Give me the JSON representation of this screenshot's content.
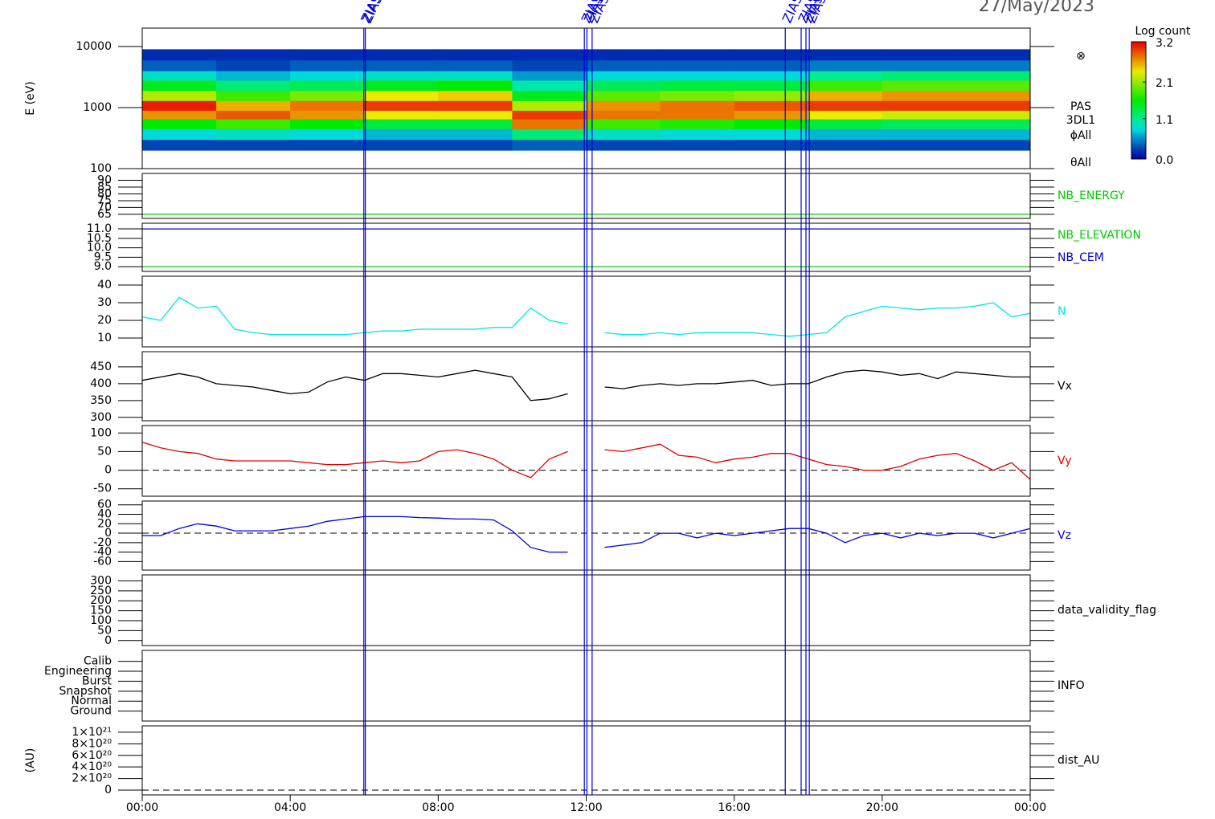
{
  "date": "27/May/2023",
  "xlim": [
    0,
    24
  ],
  "xticks": [
    {
      "value": 0,
      "label": "00:00"
    },
    {
      "value": 4,
      "label": "04:00"
    },
    {
      "value": 8,
      "label": "08:00"
    },
    {
      "value": 12,
      "label": "12:00"
    },
    {
      "value": 16,
      "label": "16:00"
    },
    {
      "value": 20,
      "label": "20:00"
    },
    {
      "value": 24,
      "label": "00:00"
    }
  ],
  "events": {
    "label": "ZIAS",
    "color": "#0000cc",
    "x": [
      5.99,
      6.03,
      11.95,
      12.02,
      12.16,
      17.38,
      17.81,
      17.94,
      18.03
    ]
  },
  "chart_data": [
    {
      "type": "heatmap",
      "ylabel": "E (eV)",
      "ylog": true,
      "ylim": [
        100,
        20000
      ],
      "yticks": [
        100,
        1000,
        10000
      ],
      "x_edges": [
        0,
        2,
        4,
        6,
        8,
        10,
        12,
        14,
        16,
        18,
        20,
        22,
        24
      ],
      "y_edges": [
        200,
        300,
        450,
        650,
        900,
        1300,
        1900,
        2800,
        4000,
        6000,
        9000
      ],
      "z": [
        [
          0.3,
          0.8,
          1.6,
          2.7,
          3.1,
          2.2,
          1.5,
          0.9,
          0.4,
          0.2
        ],
        [
          0.3,
          0.9,
          1.8,
          2.9,
          2.6,
          1.8,
          1.2,
          0.7,
          0.3,
          0.2
        ],
        [
          0.3,
          0.8,
          1.6,
          2.7,
          2.8,
          2.0,
          1.3,
          0.8,
          0.4,
          0.2
        ],
        [
          0.3,
          0.7,
          1.4,
          2.4,
          3.0,
          2.4,
          1.5,
          0.9,
          0.4,
          0.2
        ],
        [
          0.3,
          0.7,
          1.4,
          2.4,
          3.0,
          2.5,
          1.6,
          0.9,
          0.4,
          0.2
        ],
        [
          0.4,
          1.2,
          2.8,
          3.0,
          2.2,
          1.5,
          1.0,
          0.6,
          0.3,
          0.2
        ],
        [
          0.3,
          0.9,
          1.8,
          2.8,
          2.7,
          1.9,
          1.3,
          0.8,
          0.4,
          0.2
        ],
        [
          0.3,
          0.8,
          1.7,
          2.8,
          2.8,
          2.0,
          1.4,
          0.8,
          0.4,
          0.2
        ],
        [
          0.3,
          0.8,
          1.6,
          2.7,
          2.9,
          2.1,
          1.4,
          0.8,
          0.4,
          0.2
        ],
        [
          0.3,
          0.7,
          1.4,
          2.4,
          3.0,
          2.6,
          1.8,
          1.1,
          0.5,
          0.2
        ],
        [
          0.3,
          0.7,
          1.3,
          2.3,
          3.0,
          2.7,
          1.9,
          1.2,
          0.5,
          0.2
        ],
        [
          0.3,
          0.7,
          1.3,
          2.3,
          3.0,
          2.7,
          1.9,
          1.2,
          0.5,
          0.2
        ]
      ],
      "zlim": [
        0,
        3.2
      ],
      "colorbar_title": "Log count",
      "colorbar_ticks": [
        3.2,
        2.1,
        1.1,
        {
          "value": 0,
          "label": "0.0"
        }
      ],
      "annotations": [
        "⊗",
        "PAS",
        "3DL1",
        "ϕAll",
        "θAll"
      ]
    },
    {
      "type": "line",
      "ylim": [
        62,
        95
      ],
      "yticks": [
        65,
        70,
        75,
        80,
        85,
        90
      ],
      "series": [
        {
          "name": "NB_ENERGY",
          "color": "#00cc00",
          "x": [
            0,
            24
          ],
          "values": [
            65,
            65
          ]
        }
      ]
    },
    {
      "type": "line",
      "ylim": [
        8.75,
        11.3
      ],
      "yticks": [
        {
          "value": 9,
          "label": "9.0"
        },
        {
          "value": 9.5,
          "label": "9.5"
        },
        {
          "value": 10,
          "label": "10.0"
        },
        {
          "value": 10.5,
          "label": "10.5"
        },
        {
          "value": 11,
          "label": "11.0"
        }
      ],
      "series": [
        {
          "name": "NB_ELEVATION",
          "color": "#00cc00",
          "x": [
            0,
            24
          ],
          "values": [
            9,
            9
          ]
        },
        {
          "name": "NB_CEM",
          "color": "#0000cc",
          "x": [
            0,
            24
          ],
          "values": [
            11,
            11
          ]
        }
      ]
    },
    {
      "type": "line",
      "ylim": [
        5,
        45
      ],
      "yticks": [
        10,
        20,
        30,
        40
      ],
      "series": [
        {
          "name": "N",
          "color": "#00e5ee",
          "x": [
            0,
            0.5,
            1,
            1.5,
            2,
            2.5,
            3,
            3.5,
            4,
            4.5,
            5,
            5.5,
            6,
            6.5,
            7,
            7.5,
            8,
            8.5,
            9,
            9.5,
            10,
            10.5,
            11,
            11.5,
            12,
            12.5,
            13,
            13.5,
            14,
            14.5,
            15,
            15.5,
            16,
            16.5,
            17,
            17.5,
            18,
            18.5,
            19,
            19.5,
            20,
            20.5,
            21,
            21.5,
            22,
            22.5,
            23,
            23.5,
            24
          ],
          "values": [
            22,
            20,
            33,
            27,
            28,
            15,
            13,
            12,
            12,
            12,
            12,
            12,
            13,
            14,
            14,
            15,
            15,
            15,
            15,
            16,
            16,
            27,
            20,
            18,
            null,
            13,
            12,
            12,
            13,
            12,
            13,
            13,
            13,
            13,
            12,
            11,
            12,
            13,
            22,
            25,
            28,
            27,
            26,
            27,
            27,
            28,
            30,
            22,
            24
          ]
        }
      ]
    },
    {
      "type": "line",
      "ylim": [
        290,
        495
      ],
      "yticks": [
        300,
        350,
        400,
        450
      ],
      "series": [
        {
          "name": "Vx",
          "color": "#000000",
          "x": [
            0,
            0.5,
            1,
            1.5,
            2,
            2.5,
            3,
            3.5,
            4,
            4.5,
            5,
            5.5,
            6,
            6.5,
            7,
            7.5,
            8,
            8.5,
            9,
            9.5,
            10,
            10.5,
            11,
            11.5,
            12,
            12.5,
            13,
            13.5,
            14,
            14.5,
            15,
            15.5,
            16,
            16.5,
            17,
            17.5,
            18,
            18.5,
            19,
            19.5,
            20,
            20.5,
            21,
            21.5,
            22,
            22.5,
            23,
            23.5,
            24
          ],
          "values": [
            410,
            420,
            430,
            420,
            400,
            395,
            390,
            380,
            370,
            375,
            405,
            420,
            410,
            430,
            430,
            425,
            420,
            430,
            440,
            430,
            420,
            350,
            355,
            370,
            null,
            390,
            385,
            395,
            400,
            395,
            400,
            400,
            405,
            410,
            395,
            400,
            400,
            420,
            435,
            440,
            435,
            425,
            430,
            415,
            435,
            430,
            425,
            420,
            420
          ]
        }
      ]
    },
    {
      "type": "line",
      "ylim": [
        -70,
        120
      ],
      "yticks": [
        -50,
        0,
        50,
        100
      ],
      "zero_line": true,
      "series": [
        {
          "name": "Vy",
          "color": "#e00000",
          "x": [
            0,
            0.5,
            1,
            1.5,
            2,
            2.5,
            3,
            3.5,
            4,
            4.5,
            5,
            5.5,
            6,
            6.5,
            7,
            7.5,
            8,
            8.5,
            9,
            9.5,
            10,
            10.5,
            11,
            11.5,
            12,
            12.5,
            13,
            13.5,
            14,
            14.5,
            15,
            15.5,
            16,
            16.5,
            17,
            17.5,
            18,
            18.5,
            19,
            19.5,
            20,
            20.5,
            21,
            21.5,
            22,
            22.5,
            23,
            23.5,
            24
          ],
          "values": [
            75,
            60,
            50,
            45,
            30,
            25,
            25,
            25,
            25,
            20,
            15,
            15,
            20,
            25,
            20,
            25,
            50,
            55,
            45,
            30,
            0,
            -20,
            30,
            50,
            null,
            55,
            50,
            60,
            70,
            40,
            35,
            20,
            30,
            35,
            45,
            45,
            30,
            15,
            10,
            0,
            0,
            10,
            30,
            40,
            45,
            25,
            0,
            20,
            -25
          ]
        }
      ]
    },
    {
      "type": "line",
      "ylim": [
        -78,
        68
      ],
      "yticks": [
        -60,
        -40,
        -20,
        0,
        20,
        40,
        60
      ],
      "zero_line": true,
      "series": [
        {
          "name": "Vz",
          "color": "#0000e0",
          "x": [
            0,
            0.5,
            1,
            1.5,
            2,
            2.5,
            3,
            3.5,
            4,
            4.5,
            5,
            5.5,
            6,
            6.5,
            7,
            7.5,
            8,
            8.5,
            9,
            9.5,
            10,
            10.5,
            11,
            11.5,
            12,
            12.5,
            13,
            13.5,
            14,
            14.5,
            15,
            15.5,
            16,
            16.5,
            17,
            17.5,
            18,
            18.5,
            19,
            19.5,
            20,
            20.5,
            21,
            21.5,
            22,
            22.5,
            23,
            23.5,
            24
          ],
          "values": [
            -5,
            -5,
            10,
            20,
            15,
            5,
            5,
            5,
            10,
            15,
            25,
            30,
            35,
            35,
            35,
            33,
            32,
            30,
            30,
            28,
            5,
            -30,
            -40,
            -40,
            null,
            -30,
            -25,
            -20,
            0,
            0,
            -10,
            0,
            -5,
            0,
            5,
            10,
            10,
            0,
            -20,
            -5,
            0,
            -10,
            0,
            -5,
            0,
            0,
            -10,
            0,
            10
          ]
        }
      ]
    },
    {
      "type": "line",
      "label": "data_validity_flag",
      "ylim": [
        -25,
        330
      ],
      "yticks": [
        0,
        50,
        100,
        150,
        200,
        250,
        300
      ],
      "series": []
    },
    {
      "type": "line",
      "label": "INFO",
      "ylim": [
        -1,
        6.1
      ],
      "ycategories": [
        "Ground",
        "Normal",
        "Snapshot",
        "Burst",
        "Engineering",
        "Calib"
      ],
      "series": []
    },
    {
      "type": "line",
      "label": "dist_AU",
      "ylabel": "(AU)",
      "ylim": [
        -8.3e+19,
        1.11e+21
      ],
      "zero_line": true,
      "yticks": [
        0,
        {
          "value": 2e+20,
          "label": "2×10²⁰"
        },
        {
          "value": 4e+20,
          "label": "4×10²⁰"
        },
        {
          "value": 6e+20,
          "label": "6×10²⁰"
        },
        {
          "value": 8e+20,
          "label": "8×10²⁰"
        },
        {
          "value": 1e+21,
          "label": "1×10²¹"
        }
      ],
      "series": []
    }
  ]
}
